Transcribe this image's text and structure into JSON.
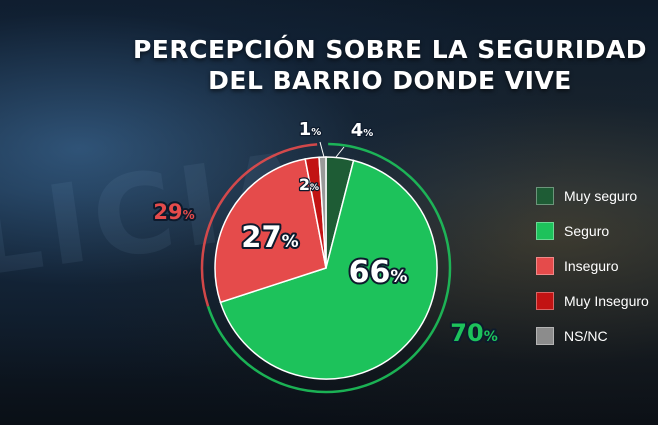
{
  "title_line1": "PERCEPCIÓN SOBRE LA SEGURIDAD",
  "title_line2": "DEL BARRIO DONDE VIVE",
  "chart_data": {
    "type": "pie",
    "series": [
      {
        "name": "Muy seguro",
        "value": 4,
        "label": "4",
        "color": "#1e5c35"
      },
      {
        "name": "Seguro",
        "value": 66,
        "label": "66",
        "color": "#1dc25b"
      },
      {
        "name": "Inseguro",
        "value": 27,
        "label": "27",
        "color": "#e54b4b"
      },
      {
        "name": "Muy Inseguro",
        "value": 2,
        "label": "2",
        "color": "#c21313"
      },
      {
        "name": "NS/NC",
        "value": 1,
        "label": "1",
        "color": "#9a9a9a"
      }
    ],
    "groups": [
      {
        "label": "70",
        "color": "#1dc25b"
      },
      {
        "label": "29",
        "color": "#e54b4b"
      }
    ],
    "unit": "%"
  },
  "legend": [
    {
      "label": "Muy seguro",
      "color": "#1e5c35"
    },
    {
      "label": "Seguro",
      "color": "#1dc25b"
    },
    {
      "label": "Inseguro",
      "color": "#e54b4b"
    },
    {
      "label": "Muy Inseguro",
      "color": "#c21313"
    },
    {
      "label": "NS/NC",
      "color": "#8c8c8c"
    }
  ]
}
